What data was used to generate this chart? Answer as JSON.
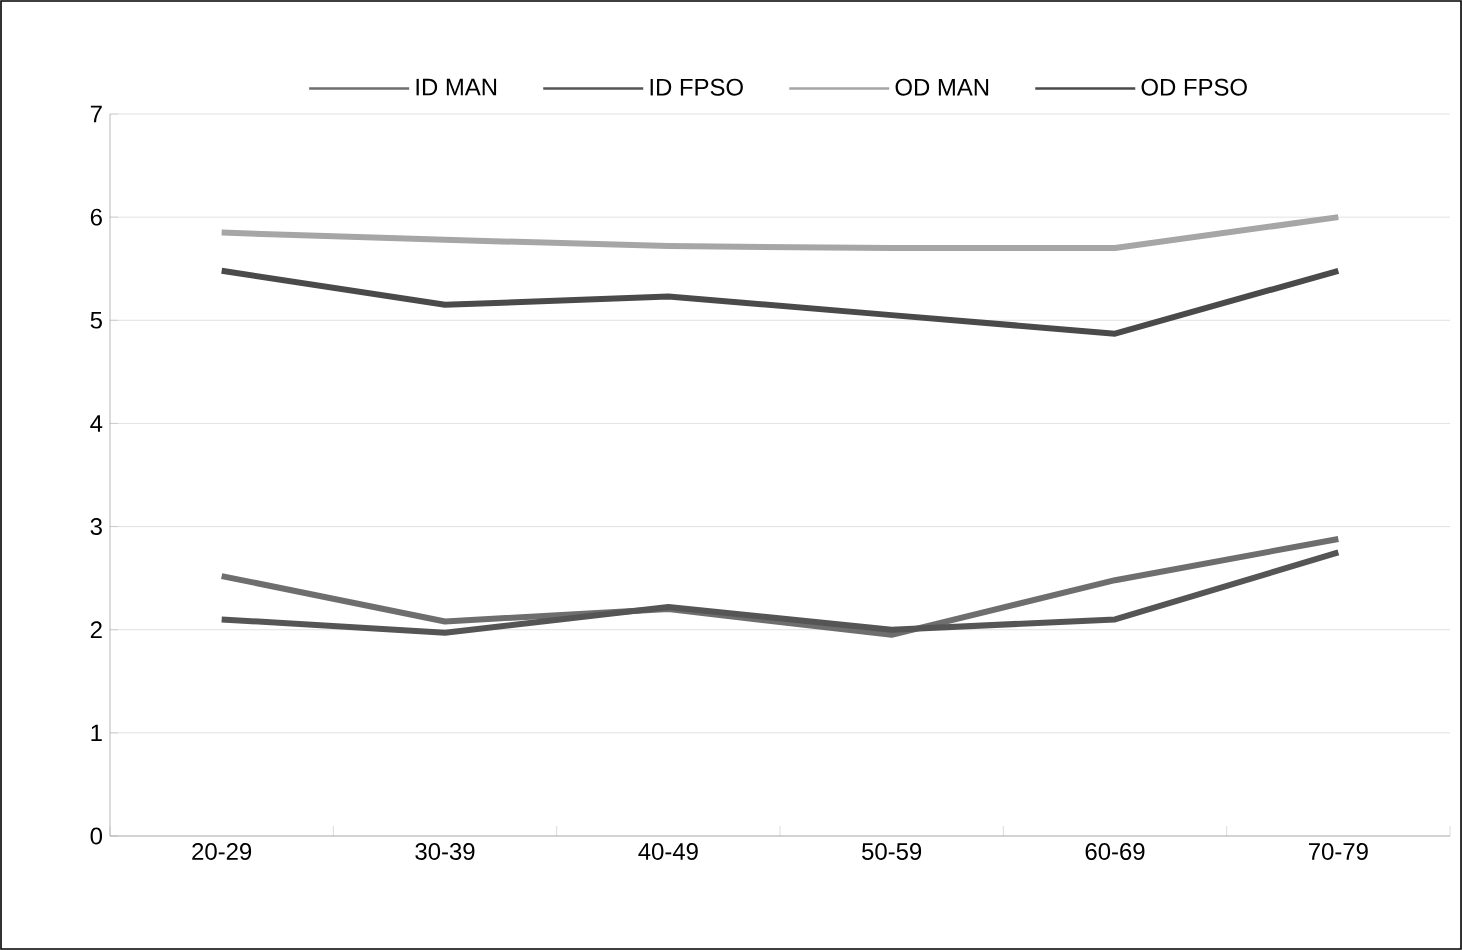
{
  "chart_data": {
    "type": "line",
    "categories": [
      "20-29",
      "30-39",
      "40-49",
      "50-59",
      "60-69",
      "70-79"
    ],
    "series": [
      {
        "name": "ID MAN",
        "color": "#6e6e6e",
        "values": [
          2.52,
          2.08,
          2.2,
          1.95,
          2.48,
          2.88
        ]
      },
      {
        "name": "ID FPSO",
        "color": "#555555",
        "values": [
          2.1,
          1.97,
          2.22,
          2.0,
          2.1,
          2.75
        ]
      },
      {
        "name": "OD MAN",
        "color": "#a6a6a6",
        "values": [
          5.85,
          5.78,
          5.72,
          5.7,
          5.7,
          6.0
        ]
      },
      {
        "name": "OD FPSO",
        "color": "#4a4a4a",
        "values": [
          5.48,
          5.15,
          5.23,
          5.05,
          4.87,
          5.48
        ]
      }
    ],
    "ylim": [
      0,
      7
    ],
    "yticks": [
      0,
      1,
      2,
      3,
      4,
      5,
      6,
      7
    ],
    "grid": "y",
    "legend": "top",
    "marker": "none",
    "line_style": "solid"
  }
}
